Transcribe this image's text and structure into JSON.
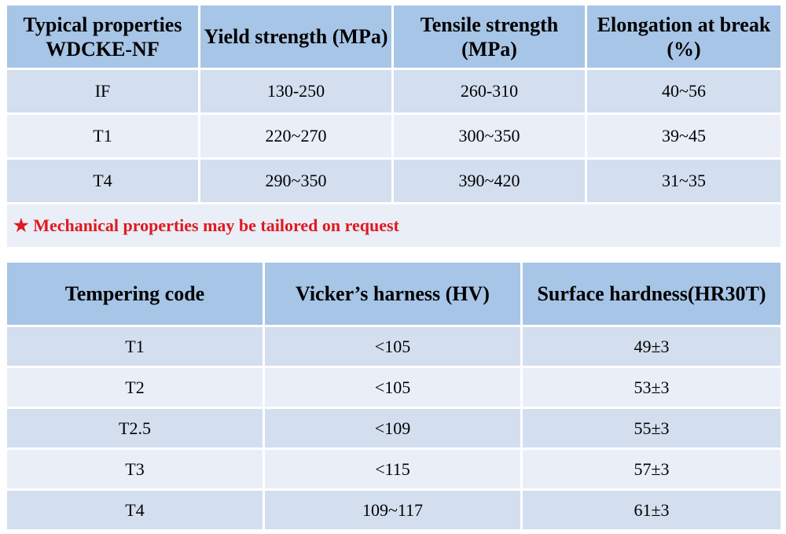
{
  "table1": {
    "headers": [
      "Typical properties WDCKE-NF",
      "Yield strength (MPa)",
      "Tensile strength (MPa)",
      "Elongation at break (%)"
    ],
    "rows": [
      [
        "IF",
        "130-250",
        "260-310",
        "40~56"
      ],
      [
        "T1",
        "220~270",
        "300~350",
        "39~45"
      ],
      [
        "T4",
        "290~350",
        "390~420",
        "31~35"
      ]
    ],
    "note": "★ Mechanical properties may be tailored on request"
  },
  "table2": {
    "headers": [
      "Tempering code",
      "Vicker’s harness (HV)",
      "Surface hardness(HR30T)"
    ],
    "rows": [
      [
        "T1",
        "<105",
        "49±3"
      ],
      [
        "T2",
        "<105",
        "53±3"
      ],
      [
        "T2.5",
        "<109",
        "55±3"
      ],
      [
        "T3",
        "<115",
        "57±3"
      ],
      [
        "T4",
        "109~117",
        "61±3"
      ]
    ]
  },
  "colors": {
    "header": "#a7c5e6",
    "row_odd": "#d3deef",
    "row_even": "#e9eef7",
    "note": "#e0191f"
  }
}
